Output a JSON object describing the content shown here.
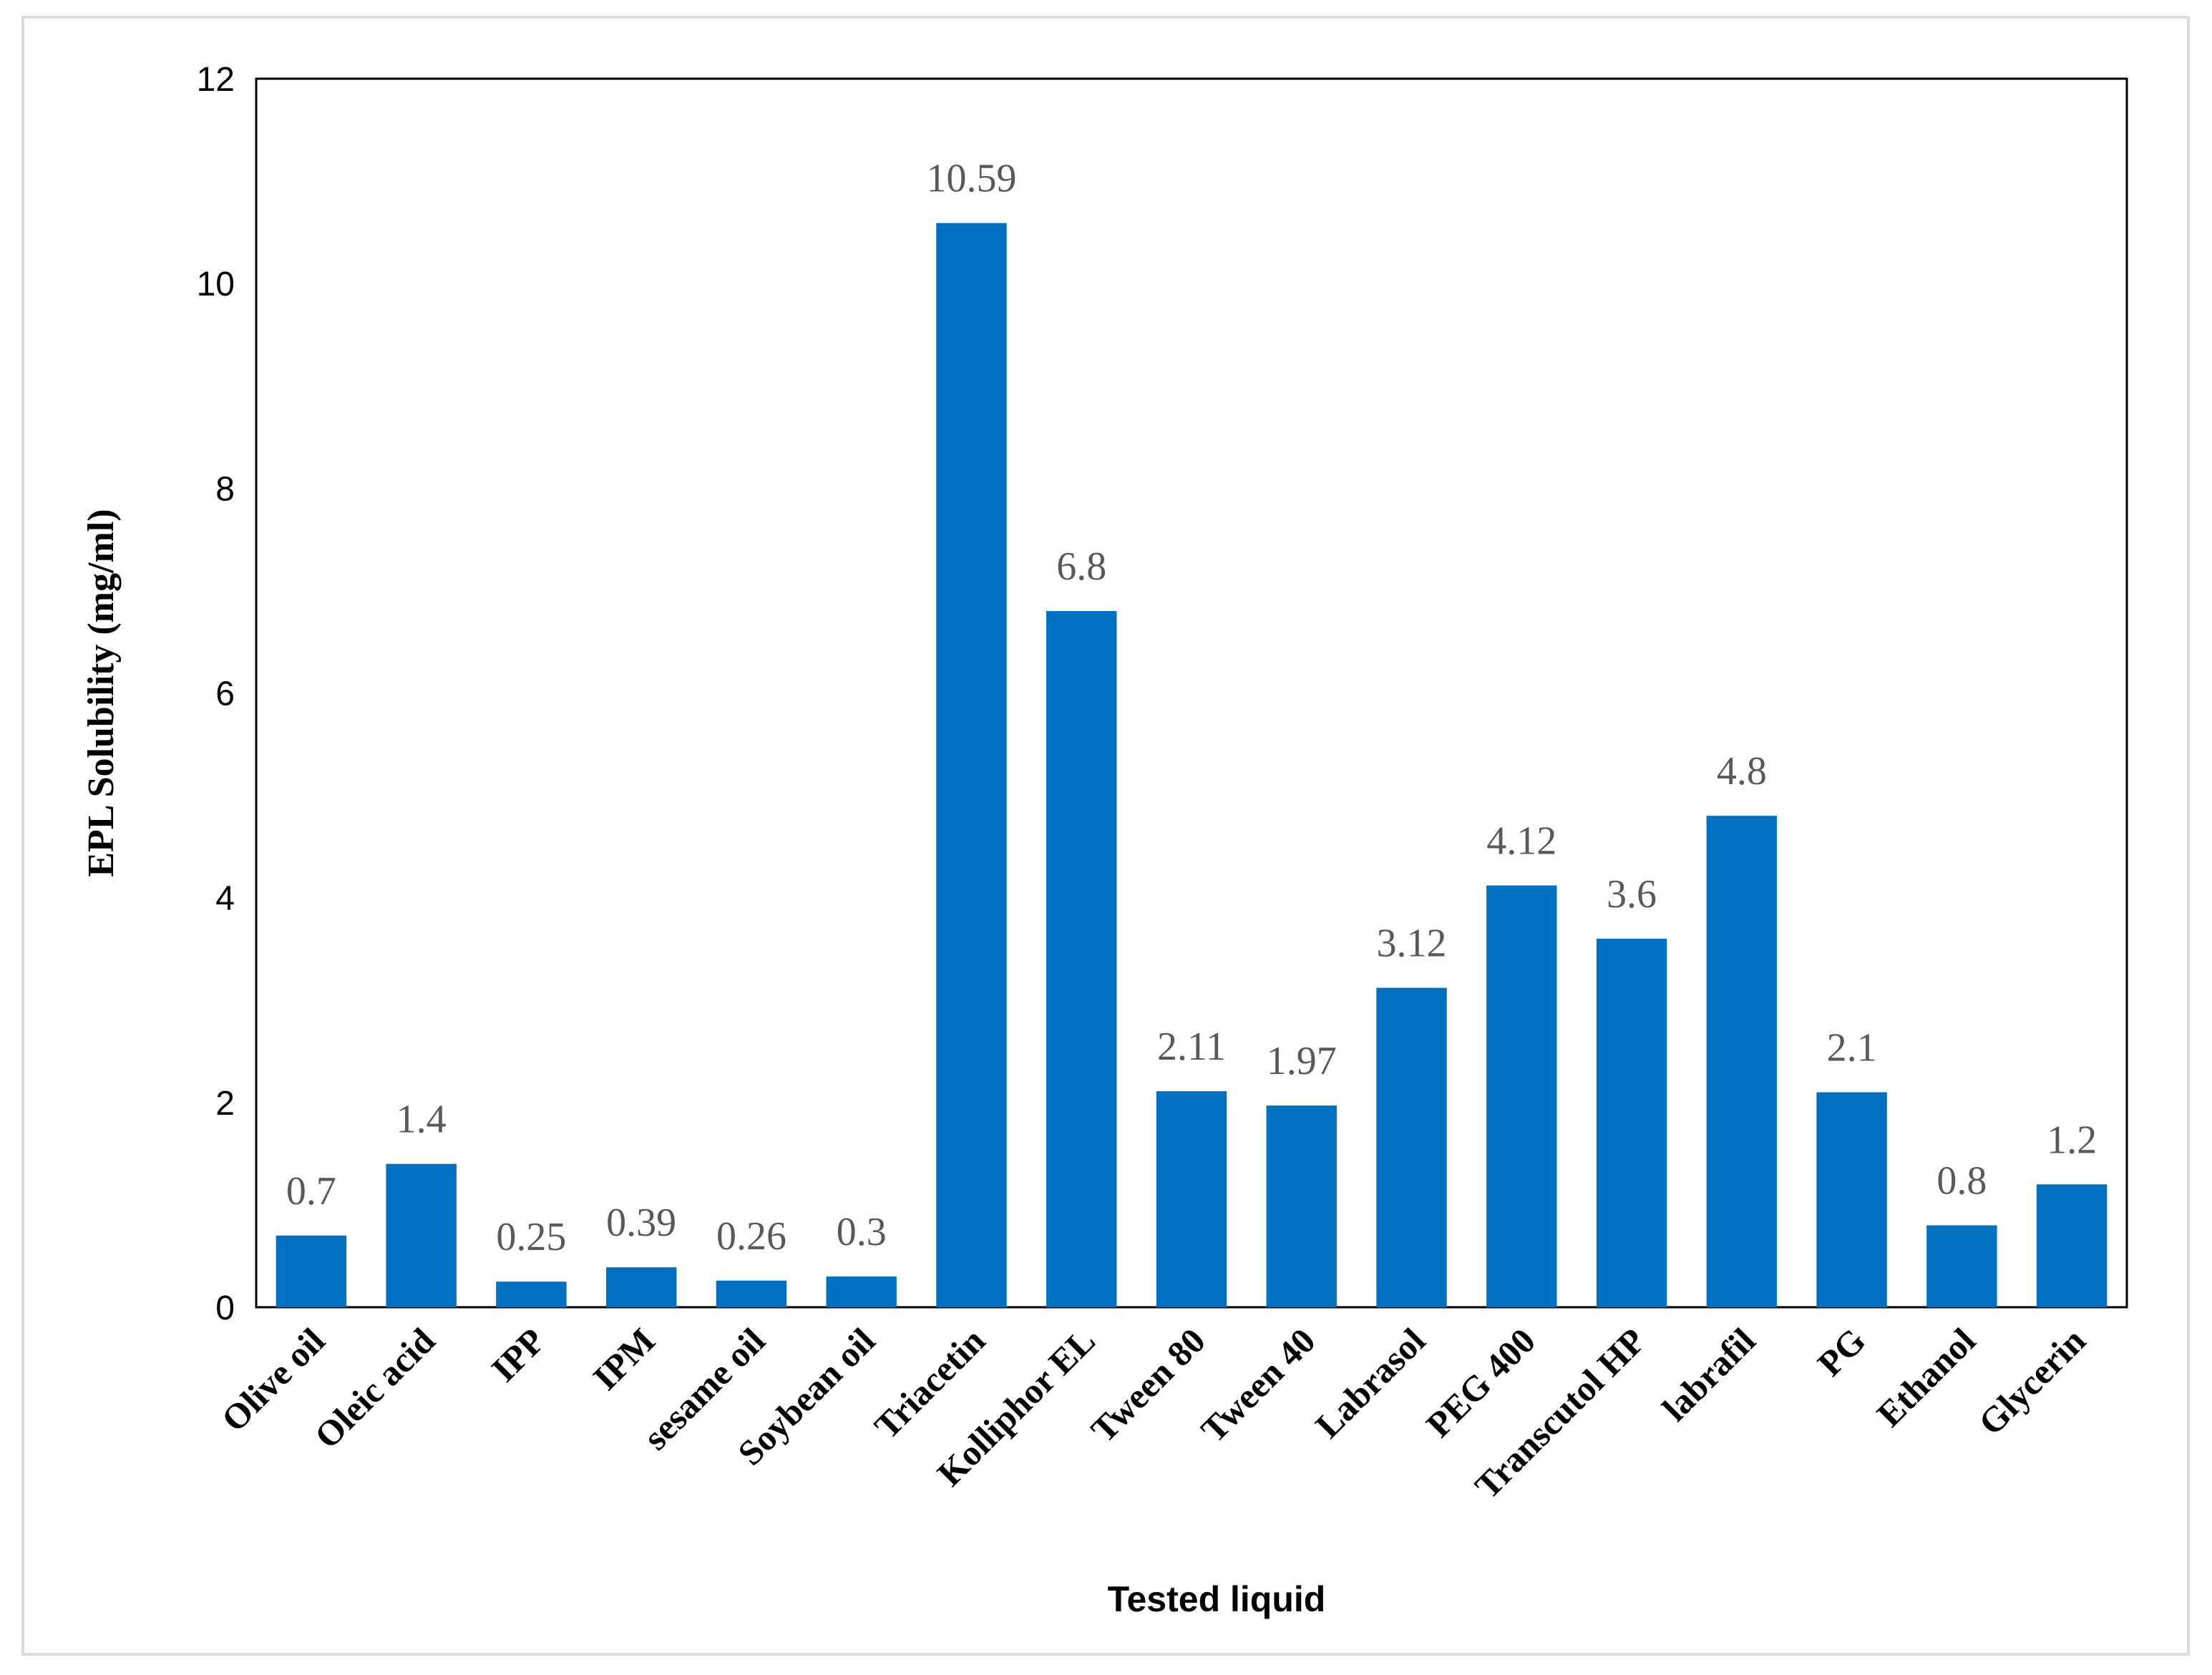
{
  "chart_data": {
    "type": "bar",
    "title": "",
    "xlabel": "Tested liquid",
    "ylabel": "EPL Solubility (mg/ml)",
    "ylim": [
      0,
      12
    ],
    "yticks": [
      0,
      2,
      4,
      6,
      8,
      10,
      12
    ],
    "grid": false,
    "bar_color": "#0070c0",
    "categories": [
      "Olive oil",
      "Oleic acid",
      "IPP",
      "IPM",
      "sesame oil",
      "Soybean oil",
      "Triacetin",
      "Kolliphor EL",
      "Tween 80",
      "Tween 40",
      "Labrasol",
      "PEG 400",
      "Transcutol HP",
      "labrafil",
      "PG",
      "Ethanol",
      "Glycerin"
    ],
    "values": [
      0.7,
      1.4,
      0.25,
      0.39,
      0.26,
      0.3,
      10.59,
      6.8,
      2.11,
      1.97,
      3.12,
      4.12,
      3.6,
      4.8,
      2.1,
      0.8,
      1.2
    ],
    "value_labels": [
      "0.7",
      "1.4",
      "0.25",
      "0.39",
      "0.26",
      "0.3",
      "10.59",
      "6.8",
      "2.11",
      "1.97",
      "3.12",
      "4.12",
      "3.6",
      "4.8",
      "2.1",
      "0.8",
      "1.2"
    ]
  }
}
